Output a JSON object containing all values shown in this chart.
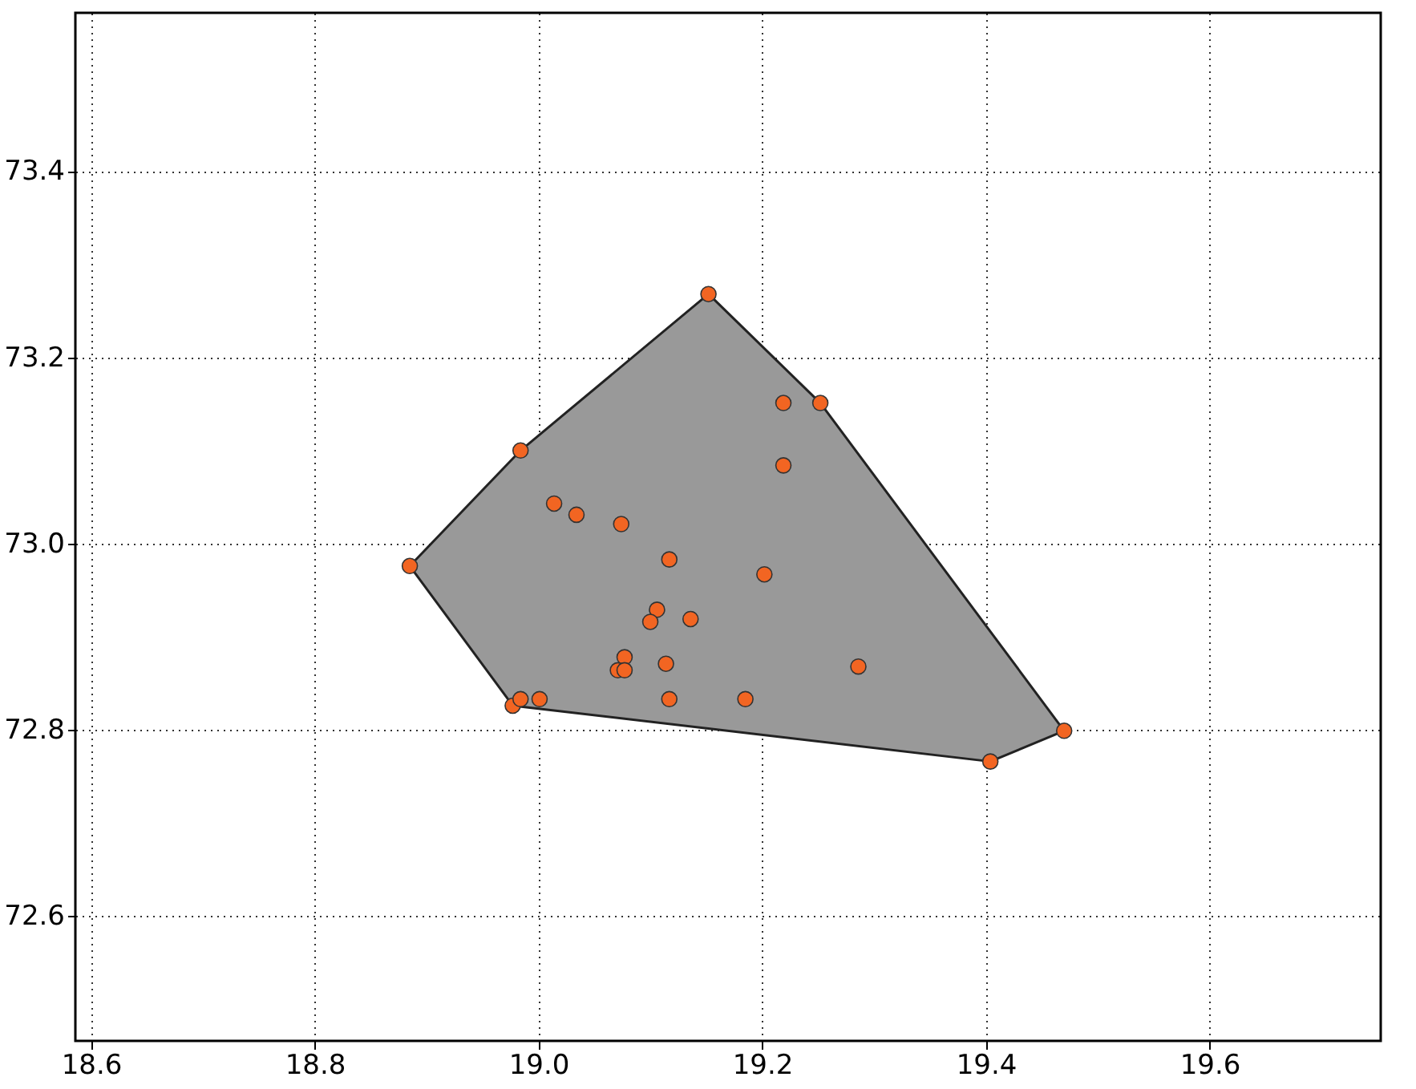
{
  "chart_data": {
    "type": "scatter",
    "xlim": [
      18.586,
      19.753
    ],
    "ylim": [
      72.466,
      73.57
    ],
    "xticks": [
      18.6,
      18.8,
      {
        "value": 19,
        "label": "19.0"
      },
      19.2,
      19.4,
      19.6
    ],
    "yticks": [
      72.6,
      72.8,
      {
        "value": 73,
        "label": "73.0"
      },
      73.2,
      73.4
    ],
    "grid": true,
    "series": [
      {
        "type": "area",
        "marker": "none",
        "color": "#999999",
        "x": [
          18.885,
          18.984,
          19.152,
          19.252,
          19.47,
          19.404,
          18.977,
          18.885
        ],
        "values": [
          72.976,
          73.1,
          73.268,
          73.151,
          72.799,
          72.766,
          72.826,
          72.976
        ]
      },
      {
        "marker": "circle",
        "color": "#f26522",
        "x": [
          19.152,
          18.984,
          18.885,
          19.219,
          19.252,
          19.219,
          19.014,
          19.034,
          19.074,
          19.117,
          19.202,
          19.106,
          19.1,
          19.136,
          19.077,
          19.071,
          19.077,
          19.114,
          19.286,
          18.977,
          18.984,
          19.001,
          19.117,
          19.185,
          19.404,
          19.47
        ],
        "values": [
          73.268,
          73.1,
          72.976,
          73.151,
          73.151,
          73.084,
          73.043,
          73.031,
          73.021,
          72.983,
          72.967,
          72.929,
          72.916,
          72.919,
          72.878,
          72.864,
          72.864,
          72.871,
          72.868,
          72.826,
          72.833,
          72.833,
          72.833,
          72.833,
          72.766,
          72.799
        ]
      }
    ]
  }
}
